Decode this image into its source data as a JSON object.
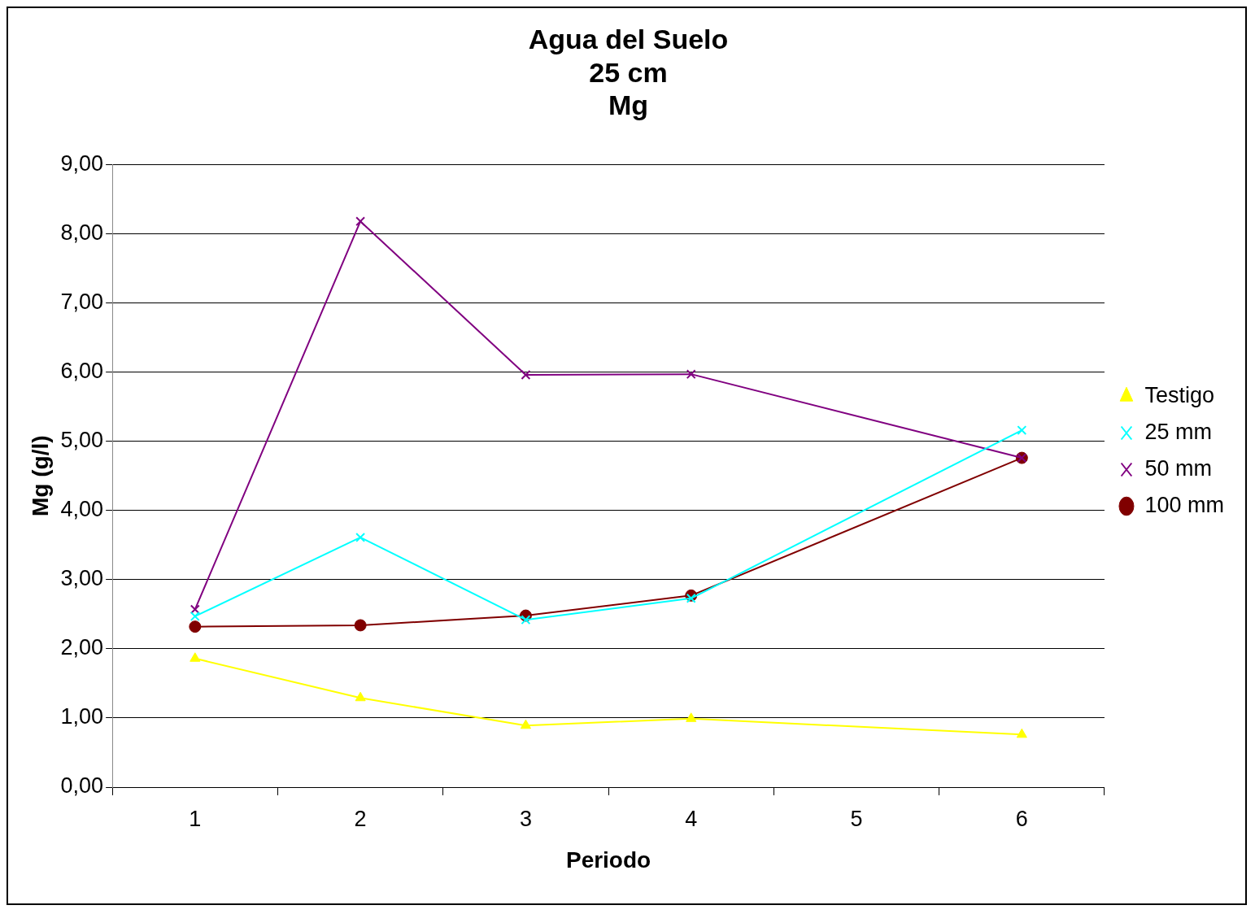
{
  "chart_data": {
    "type": "line",
    "title": "Agua del Suelo\n25 cm\nMg",
    "xlabel": "Periodo",
    "ylabel": "Mg (g/l)",
    "categories": [
      "1",
      "2",
      "3",
      "4",
      "5",
      "6"
    ],
    "series": [
      {
        "name": "Testigo",
        "color": "#ffff00",
        "marker": "triangle",
        "values": [
          1.86,
          1.29,
          0.89,
          0.99,
          null,
          0.76
        ]
      },
      {
        "name": "25 mm",
        "color": "#00ffff",
        "marker": "cross",
        "values": [
          2.47,
          3.61,
          2.42,
          2.73,
          null,
          5.16
        ]
      },
      {
        "name": "50 mm",
        "color": "#800080",
        "marker": "cross",
        "values": [
          2.57,
          8.18,
          5.96,
          5.97,
          null,
          4.76
        ]
      },
      {
        "name": "100 mm",
        "color": "#800000",
        "marker": "circle",
        "values": [
          2.32,
          2.34,
          2.48,
          2.77,
          null,
          4.76
        ]
      }
    ],
    "ylim": [
      0,
      9
    ],
    "yticks": [
      {
        "value": 0,
        "label": "0,00"
      },
      {
        "value": 1,
        "label": "1,00"
      },
      {
        "value": 2,
        "label": "2,00"
      },
      {
        "value": 3,
        "label": "3,00"
      },
      {
        "value": 4,
        "label": "4,00"
      },
      {
        "value": 5,
        "label": "5,00"
      },
      {
        "value": 6,
        "label": "6,00"
      },
      {
        "value": 7,
        "label": "7,00"
      },
      {
        "value": 8,
        "label": "8,00"
      },
      {
        "value": 9,
        "label": "9,00"
      }
    ],
    "grid": "y",
    "legend": "right"
  }
}
